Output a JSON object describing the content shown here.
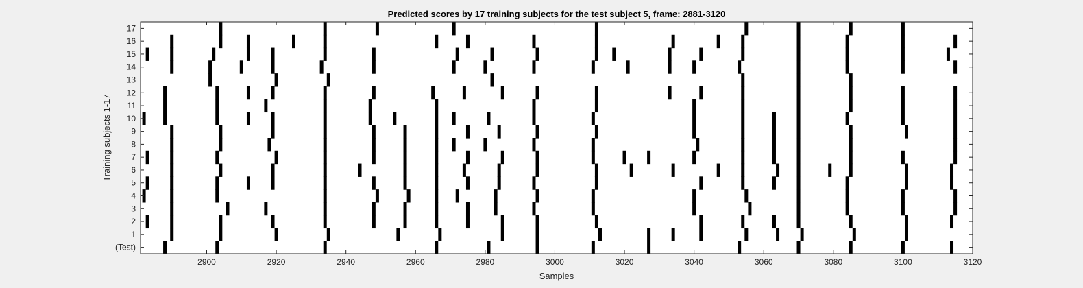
{
  "chart_data": {
    "type": "scatter",
    "title": "Predicted scores by 17 training subjects for the test subject 5, frame: 2881-3120",
    "xlabel": "Samples",
    "ylabel": "Training subjects 1-17",
    "xlim": [
      2881,
      3120
    ],
    "x_ticks": [
      2900,
      2920,
      2940,
      2960,
      2980,
      3000,
      3020,
      3040,
      3060,
      3080,
      3100,
      3120
    ],
    "row_labels": [
      "(Test)",
      "1",
      "2",
      "3",
      "4",
      "5",
      "6",
      "7",
      "8",
      "9",
      "10",
      "11",
      "12",
      "13",
      "14",
      "15",
      "16",
      "17"
    ],
    "grid": false,
    "series": [
      {
        "row": "(Test)",
        "values": [
          2888,
          2903,
          2934,
          2966,
          2981,
          2995,
          3011,
          3027,
          3053,
          3070,
          3085,
          3100,
          3114
        ]
      },
      {
        "row": "1",
        "values": [
          2890,
          2904,
          2920,
          2935,
          2955,
          2967,
          2985,
          2995,
          3013,
          3027,
          3034,
          3042,
          3055,
          3064,
          3071,
          3086,
          3101
        ]
      },
      {
        "row": "2",
        "values": [
          2883,
          2890,
          2904,
          2919,
          2934,
          2948,
          2957,
          2966,
          2975,
          2985,
          2995,
          3012,
          3042,
          3054,
          3063,
          3070,
          3085,
          3101,
          3114
        ]
      },
      {
        "row": "3",
        "values": [
          2890,
          2906,
          2917,
          2934,
          2948,
          2957,
          2966,
          2975,
          2983,
          2994,
          3011,
          3040,
          3056,
          3070,
          3084,
          3100,
          3115
        ]
      },
      {
        "row": "4",
        "values": [
          2882,
          2890,
          2903,
          2934,
          2949,
          2958,
          2966,
          2972,
          2983,
          2995,
          3011,
          3040,
          3055,
          3070,
          3084,
          3100,
          3115
        ]
      },
      {
        "row": "5",
        "values": [
          2883,
          2890,
          2903,
          2912,
          2919,
          2934,
          2948,
          2957,
          2966,
          2975,
          2984,
          2994,
          3012,
          3042,
          3054,
          3063,
          3070,
          3084,
          3101,
          3114
        ]
      },
      {
        "row": "6",
        "values": [
          2890,
          2904,
          2919,
          2934,
          2944,
          2957,
          2966,
          2974,
          2984,
          2995,
          3012,
          3022,
          3034,
          3047,
          3054,
          3064,
          3070,
          3079,
          3085,
          3101,
          3114
        ]
      },
      {
        "row": "7",
        "values": [
          2883,
          2890,
          2903,
          2920,
          2934,
          2948,
          2957,
          2966,
          2975,
          2985,
          2995,
          3011,
          3020,
          3027,
          3040,
          3054,
          3063,
          3070,
          3085,
          3100,
          3115
        ]
      },
      {
        "row": "8",
        "values": [
          2890,
          2904,
          2918,
          2934,
          2948,
          2957,
          2966,
          2971,
          2980,
          2994,
          3011,
          3041,
          3054,
          3063,
          3070,
          3085,
          3115
        ]
      },
      {
        "row": "9",
        "values": [
          2890,
          2904,
          2919,
          2934,
          2948,
          2957,
          2966,
          2975,
          2984,
          2995,
          3012,
          3040,
          3054,
          3063,
          3070,
          3085,
          3101,
          3115
        ]
      },
      {
        "row": "10",
        "values": [
          2882,
          2888,
          2903,
          2912,
          2919,
          2934,
          2947,
          2954,
          2966,
          2971,
          2981,
          2994,
          3011,
          3040,
          3054,
          3063,
          3070,
          3084,
          3100,
          3115
        ]
      },
      {
        "row": "11",
        "values": [
          2888,
          2903,
          2917,
          2934,
          2947,
          2966,
          2994,
          3012,
          3040,
          3054,
          3070,
          3085,
          3100,
          3115
        ]
      },
      {
        "row": "12",
        "values": [
          2888,
          2903,
          2912,
          2919,
          2934,
          2948,
          2965,
          2974,
          2985,
          2995,
          3012,
          3033,
          3042,
          3054,
          3070,
          3085,
          3100,
          3115
        ]
      },
      {
        "row": "13",
        "values": [
          2901,
          2920,
          2935,
          2982,
          3054,
          3070,
          3085
        ]
      },
      {
        "row": "14",
        "values": [
          2890,
          2901,
          2910,
          2919,
          2933,
          2948,
          2971,
          2980,
          2994,
          3011,
          3021,
          3033,
          3040,
          3053,
          3070,
          3084,
          3100,
          3115
        ]
      },
      {
        "row": "15",
        "values": [
          2883,
          2890,
          2902,
          2912,
          2919,
          2934,
          2948,
          2972,
          2982,
          2995,
          3012,
          3017,
          3033,
          3042,
          3054,
          3070,
          3084,
          3100,
          3113
        ]
      },
      {
        "row": "16",
        "values": [
          2890,
          2904,
          2912,
          2925,
          2934,
          2966,
          2975,
          2994,
          3012,
          3034,
          3047,
          3054,
          3070,
          3084,
          3100,
          3115
        ]
      },
      {
        "row": "17",
        "values": [
          2904,
          2934,
          2949,
          2971,
          3012,
          3055,
          3070,
          3085,
          3100
        ]
      }
    ]
  }
}
